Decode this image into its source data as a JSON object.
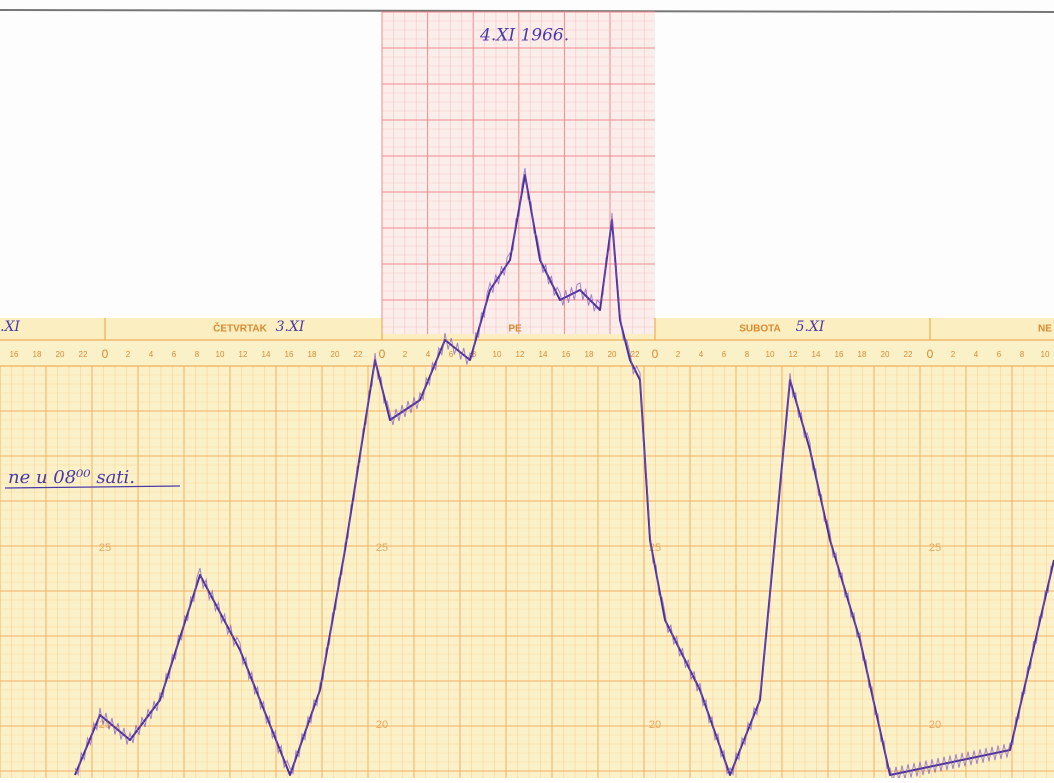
{
  "header": {
    "date_note": "4.XI 1966."
  },
  "strip": {
    "days": [
      {
        "name": null,
        "date": ".XI"
      },
      {
        "name": "ČETVRTAK",
        "date": "3.XI"
      },
      {
        "name": "PE",
        "date": null
      },
      {
        "name": "SUBOTA",
        "date": "5.XI"
      },
      {
        "name": "NE",
        "date": null
      }
    ],
    "hours": [
      "0",
      "2",
      "4",
      "6",
      "8",
      "10",
      "12",
      "14",
      "16",
      "18",
      "20",
      "22"
    ],
    "levels": [
      "25",
      "20"
    ],
    "note": "ne u 08⁰⁰ sati."
  }
}
